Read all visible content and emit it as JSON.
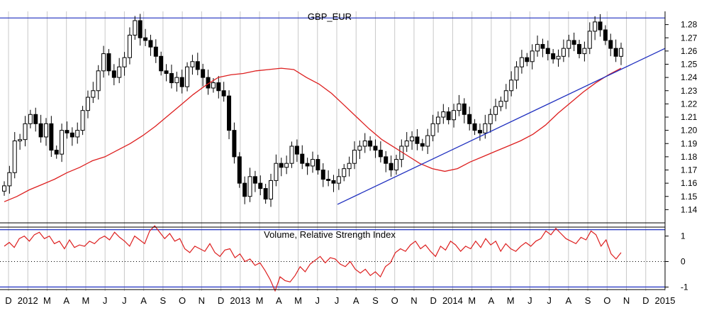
{
  "chart_data": [
    {
      "type": "candlestick",
      "title": "GBP_EUR",
      "timeframe": "weekly",
      "ylim": [
        1.13,
        1.29
      ],
      "y_ticks": [
        1.14,
        1.15,
        1.16,
        1.17,
        1.18,
        1.19,
        1.2,
        1.21,
        1.22,
        1.23,
        1.24,
        1.25,
        1.26,
        1.27,
        1.28
      ],
      "x_ticks": [
        "D",
        "2012",
        "M",
        "A",
        "M",
        "J",
        "J",
        "A",
        "S",
        "O",
        "N",
        "D",
        "2013",
        "M",
        "A",
        "M",
        "J",
        "J",
        "A",
        "S",
        "O",
        "N",
        "D",
        "2014",
        "M",
        "A",
        "M",
        "J",
        "J",
        "A",
        "S",
        "O",
        "N",
        "D",
        "2015"
      ],
      "close": [
        1.158,
        1.168,
        1.192,
        1.193,
        1.205,
        1.212,
        1.205,
        1.195,
        1.205,
        1.185,
        1.182,
        1.2,
        1.198,
        1.195,
        1.2,
        1.215,
        1.225,
        1.23,
        1.245,
        1.258,
        1.245,
        1.24,
        1.248,
        1.255,
        1.272,
        1.283,
        1.27,
        1.268,
        1.263,
        1.256,
        1.245,
        1.243,
        1.236,
        1.24,
        1.233,
        1.248,
        1.252,
        1.246,
        1.24,
        1.232,
        1.236,
        1.23,
        1.226,
        1.2,
        1.18,
        1.16,
        1.15,
        1.165,
        1.16,
        1.156,
        1.148,
        1.162,
        1.175,
        1.172,
        1.175,
        1.188,
        1.182,
        1.175,
        1.173,
        1.178,
        1.17,
        1.163,
        1.162,
        1.16,
        1.165,
        1.171,
        1.175,
        1.185,
        1.188,
        1.192,
        1.188,
        1.185,
        1.18,
        1.175,
        1.17,
        1.178,
        1.188,
        1.192,
        1.195,
        1.19,
        1.188,
        1.196,
        1.205,
        1.21,
        1.214,
        1.208,
        1.215,
        1.22,
        1.212,
        1.205,
        1.2,
        1.198,
        1.205,
        1.212,
        1.218,
        1.222,
        1.23,
        1.238,
        1.248,
        1.255,
        1.252,
        1.26,
        1.265,
        1.262,
        1.258,
        1.254,
        1.256,
        1.262,
        1.268,
        1.265,
        1.258,
        1.262,
        1.275,
        1.282,
        1.276,
        1.268,
        1.262,
        1.256,
        1.262
      ],
      "moving_average": [
        1.146,
        1.15,
        1.155,
        1.159,
        1.163,
        1.168,
        1.172,
        1.177,
        1.18,
        1.185,
        1.19,
        1.196,
        1.203,
        1.211,
        1.219,
        1.227,
        1.234,
        1.24,
        1.242,
        1.243,
        1.245,
        1.246,
        1.247,
        1.246,
        1.24,
        1.235,
        1.228,
        1.219,
        1.21,
        1.201,
        1.193,
        1.187,
        1.181,
        1.175,
        1.171,
        1.169,
        1.171,
        1.176,
        1.18,
        1.184,
        1.188,
        1.192,
        1.197,
        1.204,
        1.213,
        1.221,
        1.229,
        1.236,
        1.242,
        1.247
      ],
      "trendline_points": [
        [
          0.0,
          1.144
        ],
        [
          1.0,
          1.262
        ]
      ],
      "resistance_level": 1.285
    },
    {
      "type": "line",
      "title": "Volume, Relative Strength Index",
      "ylim": [
        -1.1,
        1.35
      ],
      "y_ticks": [
        1,
        0,
        -1
      ],
      "upper_level": 1.25,
      "lower_level": -1.0,
      "zero_line": 0,
      "values": [
        0.6,
        0.75,
        0.55,
        0.9,
        1.0,
        0.8,
        1.05,
        1.15,
        0.9,
        1.0,
        0.7,
        0.8,
        0.5,
        0.85,
        0.55,
        0.65,
        0.6,
        0.8,
        0.7,
        0.9,
        1.0,
        0.85,
        1.15,
        0.95,
        0.8,
        0.6,
        1.0,
        0.85,
        0.7,
        1.2,
        1.4,
        1.15,
        0.9,
        1.1,
        0.8,
        0.9,
        0.5,
        0.35,
        0.6,
        0.5,
        0.4,
        0.7,
        0.35,
        0.2,
        0.45,
        0.5,
        0.15,
        0.3,
        0.0,
        0.1,
        -0.15,
        -0.05,
        -0.35,
        -0.7,
        -1.15,
        -0.6,
        -0.75,
        -0.8,
        -0.55,
        -0.2,
        -0.4,
        -0.1,
        0.05,
        0.2,
        -0.05,
        0.15,
        0.1,
        -0.1,
        -0.2,
        0.0,
        -0.3,
        -0.45,
        -0.3,
        -0.55,
        -0.4,
        -0.6,
        -0.2,
        -0.05,
        0.35,
        0.5,
        0.4,
        0.65,
        0.8,
        0.5,
        0.65,
        0.4,
        0.2,
        0.6,
        0.45,
        0.8,
        0.65,
        0.4,
        0.6,
        0.5,
        0.8,
        0.55,
        0.9,
        0.65,
        0.8,
        0.4,
        0.7,
        0.5,
        0.4,
        0.6,
        0.75,
        0.6,
        0.8,
        0.9,
        1.2,
        1.05,
        1.3,
        1.1,
        0.9,
        0.8,
        0.7,
        0.95,
        0.85,
        1.2,
        1.05,
        0.6,
        0.85,
        0.3,
        0.1,
        0.35
      ]
    }
  ]
}
